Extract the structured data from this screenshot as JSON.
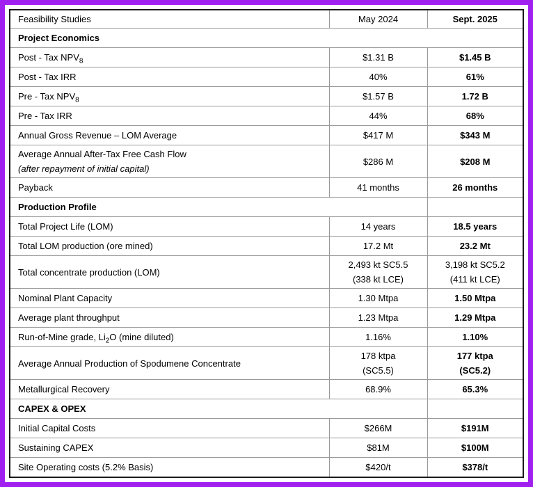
{
  "colors": {
    "frame_border": "#A020F0",
    "table_border": "#1A1A1A",
    "grid_line": "#999999",
    "text": "#000000",
    "background": "#FFFFFF"
  },
  "table": {
    "header": {
      "col1": "Feasibility Studies",
      "col2": "May 2024",
      "col3": "Sept. 2025"
    },
    "rows": [
      {
        "type": "section",
        "label": "Project Economics",
        "span": 3
      },
      {
        "type": "data",
        "label": "Post - Tax NPV_{8}",
        "may": [
          "$1.31 B"
        ],
        "sept": [
          "$1.45 B"
        ],
        "sept_bold": true
      },
      {
        "type": "data",
        "label": "Post - Tax IRR",
        "may": [
          "40%"
        ],
        "sept": [
          "61%"
        ],
        "sept_bold": true
      },
      {
        "type": "data",
        "label": "Pre - Tax NPV_{8}",
        "may": [
          "$1.57 B"
        ],
        "sept": [
          "1.72 B"
        ],
        "sept_bold": true
      },
      {
        "type": "data",
        "label": "Pre - Tax IRR",
        "may": [
          "44%"
        ],
        "sept": [
          "68%"
        ],
        "sept_bold": true
      },
      {
        "type": "data",
        "label": "Annual Gross Revenue – LOM Average",
        "may": [
          "$417 M"
        ],
        "sept": [
          "$343 M"
        ],
        "sept_bold": true
      },
      {
        "type": "data",
        "label": "Average Annual After-Tax Free Cash Flow",
        "label_note": "(after repayment of initial capital)",
        "may": [
          "$286 M"
        ],
        "sept": [
          "$208 M"
        ],
        "sept_bold": true,
        "tall": true
      },
      {
        "type": "data",
        "label": "Payback",
        "may": [
          "41 months"
        ],
        "sept": [
          "26 months"
        ],
        "sept_bold": true
      },
      {
        "type": "section",
        "label": "Production Profile",
        "span": 2
      },
      {
        "type": "data",
        "label": "Total Project Life (LOM)",
        "may": [
          "14 years"
        ],
        "sept": [
          "18.5 years"
        ],
        "sept_bold": true
      },
      {
        "type": "data",
        "label": "Total LOM production (ore mined)",
        "may": [
          "17.2 Mt"
        ],
        "sept": [
          "23.2 Mt"
        ],
        "sept_bold": true
      },
      {
        "type": "data",
        "label": "Total concentrate production (LOM)",
        "may": [
          "2,493 kt SC5.5",
          "(338 kt LCE)"
        ],
        "sept": [
          "3,198 kt SC5.2",
          "(411 kt LCE)"
        ],
        "sept_bold": false,
        "tall": true
      },
      {
        "type": "data",
        "label": "Nominal Plant Capacity",
        "may": [
          "1.30 Mtpa"
        ],
        "sept": [
          "1.50 Mtpa"
        ],
        "sept_bold": true
      },
      {
        "type": "data",
        "label": "Average plant throughput",
        "may": [
          "1.23 Mtpa"
        ],
        "sept": [
          "1.29 Mtpa"
        ],
        "sept_bold": true
      },
      {
        "type": "data",
        "label": "Run-of-Mine grade, Li_{2}O (mine diluted)",
        "may": [
          "1.16%"
        ],
        "sept": [
          "1.10%"
        ],
        "sept_bold": true
      },
      {
        "type": "data",
        "label": "Average Annual Production of Spodumene Concentrate",
        "may": [
          "178 ktpa",
          "(SC5.5)"
        ],
        "sept": [
          "177 ktpa",
          "(SC5.2)"
        ],
        "sept_bold": true,
        "tall": true
      },
      {
        "type": "data",
        "label": "Metallurgical Recovery",
        "may": [
          "68.9%"
        ],
        "sept": [
          "65.3%"
        ],
        "sept_bold": true
      },
      {
        "type": "section",
        "label": "CAPEX & OPEX",
        "span": 2
      },
      {
        "type": "data",
        "label": "Initial Capital Costs",
        "may": [
          "$266M"
        ],
        "sept": [
          "$191M"
        ],
        "sept_bold": true
      },
      {
        "type": "data",
        "label": "Sustaining CAPEX",
        "may": [
          "$81M"
        ],
        "sept": [
          "$100M"
        ],
        "sept_bold": true
      },
      {
        "type": "data",
        "label": "Site Operating costs (5.2% Basis)",
        "may": [
          "$420/t"
        ],
        "sept": [
          "$378/t"
        ],
        "sept_bold": true
      }
    ]
  }
}
